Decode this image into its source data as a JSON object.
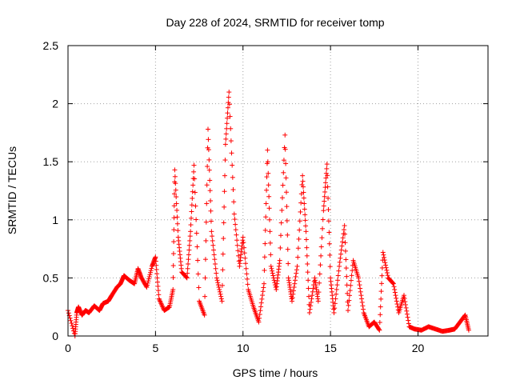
{
  "chart_data": {
    "type": "scatter",
    "title": "Day 228 of 2024, SRMTID for receiver tomp",
    "xlabel": "GPS time / hours",
    "ylabel": "SRMTID / TECUs",
    "xlim": [
      0,
      24
    ],
    "ylim": [
      0,
      2.5
    ],
    "xticks": [
      0,
      5,
      10,
      15,
      20
    ],
    "xtick_labels": [
      "0",
      "5",
      "10",
      "15",
      "20"
    ],
    "yticks": [
      0,
      0.5,
      1,
      1.5,
      2,
      2.5
    ],
    "ytick_labels": [
      "0",
      "0.5",
      "1",
      "1.5",
      "2",
      "2.5"
    ],
    "grid": true,
    "marker": "+",
    "series": [
      {
        "name": "SRMTID",
        "color": "#ff0000",
        "description_points": "sampled envelope of plotted points",
        "x": [
          0.0,
          0.4,
          0.5,
          0.6,
          0.8,
          1.0,
          1.2,
          1.5,
          1.8,
          2.0,
          2.3,
          2.5,
          2.8,
          3.0,
          3.2,
          3.5,
          3.8,
          4.0,
          4.2,
          4.5,
          4.8,
          5.0,
          5.2,
          5.5,
          5.8,
          6.0,
          6.1,
          6.3,
          6.5,
          6.8,
          7.0,
          7.2,
          7.5,
          7.8,
          8.0,
          8.2,
          8.5,
          8.8,
          9.0,
          9.2,
          9.5,
          9.8,
          10.0,
          10.3,
          10.6,
          10.9,
          11.2,
          11.4,
          11.6,
          11.9,
          12.1,
          12.4,
          12.6,
          12.8,
          13.1,
          13.4,
          13.6,
          13.8,
          14.1,
          14.3,
          14.6,
          14.8,
          15.0,
          15.2,
          15.5,
          15.8,
          16.0,
          16.3,
          16.6,
          16.9,
          17.2,
          17.5,
          17.8,
          18.0,
          18.3,
          18.6,
          18.9,
          19.2,
          19.5,
          19.8,
          20.2,
          20.6,
          21.0,
          21.4,
          21.8,
          22.1,
          22.4,
          22.7,
          22.9
        ],
        "y": [
          0.22,
          0.0,
          0.2,
          0.25,
          0.18,
          0.22,
          0.2,
          0.26,
          0.22,
          0.28,
          0.3,
          0.35,
          0.42,
          0.45,
          0.52,
          0.48,
          0.45,
          0.58,
          0.5,
          0.42,
          0.6,
          0.68,
          0.32,
          0.22,
          0.25,
          0.4,
          1.43,
          0.85,
          0.55,
          0.5,
          0.9,
          1.47,
          0.3,
          0.18,
          1.78,
          0.9,
          0.5,
          0.3,
          1.65,
          2.1,
          1.05,
          0.6,
          0.85,
          0.4,
          0.25,
          0.12,
          0.45,
          1.6,
          0.6,
          0.4,
          0.65,
          1.73,
          0.5,
          0.3,
          0.6,
          1.38,
          0.9,
          0.2,
          0.5,
          0.3,
          1.08,
          1.48,
          0.5,
          0.2,
          0.6,
          0.95,
          0.22,
          0.65,
          0.5,
          0.2,
          0.08,
          0.12,
          0.05,
          0.72,
          0.5,
          0.45,
          0.2,
          0.35,
          0.08,
          0.06,
          0.05,
          0.08,
          0.06,
          0.04,
          0.05,
          0.06,
          0.12,
          0.18,
          0.05
        ]
      }
    ]
  }
}
